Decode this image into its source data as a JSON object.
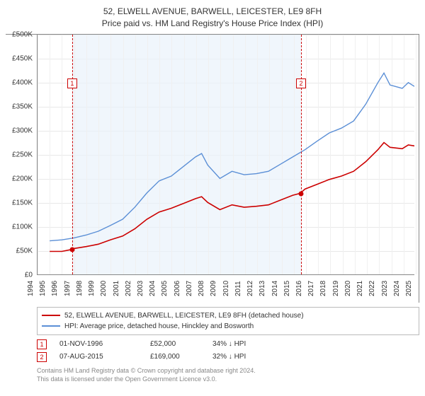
{
  "title_line1": "52, ELWELL AVENUE, BARWELL, LEICESTER, LE9 8FH",
  "title_line2": "Price paid vs. HM Land Registry's House Price Index (HPI)",
  "chart": {
    "type": "line",
    "background_color": "#ffffff",
    "shade_color": "#eaf2fb",
    "grid_color": "#e8e8e8",
    "axis_color": "#888888",
    "ylim": [
      0,
      500000
    ],
    "ytick_step": 50000,
    "yticks": [
      "£0",
      "£50K",
      "£100K",
      "£150K",
      "£200K",
      "£250K",
      "£300K",
      "£350K",
      "£400K",
      "£450K",
      "£500K"
    ],
    "xlim": [
      1994,
      2025
    ],
    "xticks": [
      "1994",
      "1995",
      "1996",
      "1997",
      "1998",
      "1999",
      "2000",
      "2001",
      "2002",
      "2003",
      "2004",
      "2005",
      "2006",
      "2007",
      "2008",
      "2009",
      "2010",
      "2011",
      "2012",
      "2013",
      "2014",
      "2015",
      "2016",
      "2017",
      "2018",
      "2019",
      "2020",
      "2021",
      "2022",
      "2023",
      "2024",
      "2025"
    ],
    "shade_start_year": 1996.84,
    "shade_end_year": 2015.6,
    "series": [
      {
        "name": "property",
        "label": "52, ELWELL AVENUE, BARWELL, LEICESTER, LE9 8FH (detached house)",
        "color": "#cc0000",
        "line_width": 1.6,
        "data": [
          [
            1995,
            48000
          ],
          [
            1996,
            48000
          ],
          [
            1996.84,
            52000
          ],
          [
            1997,
            54000
          ],
          [
            1998,
            58000
          ],
          [
            1999,
            63000
          ],
          [
            2000,
            72000
          ],
          [
            2001,
            80000
          ],
          [
            2002,
            95000
          ],
          [
            2003,
            115000
          ],
          [
            2004,
            130000
          ],
          [
            2005,
            138000
          ],
          [
            2006,
            148000
          ],
          [
            2007,
            158000
          ],
          [
            2007.5,
            162000
          ],
          [
            2008,
            150000
          ],
          [
            2009,
            135000
          ],
          [
            2010,
            145000
          ],
          [
            2011,
            140000
          ],
          [
            2012,
            142000
          ],
          [
            2013,
            145000
          ],
          [
            2014,
            155000
          ],
          [
            2015,
            165000
          ],
          [
            2015.6,
            169000
          ],
          [
            2016,
            178000
          ],
          [
            2017,
            188000
          ],
          [
            2018,
            198000
          ],
          [
            2019,
            205000
          ],
          [
            2020,
            215000
          ],
          [
            2021,
            235000
          ],
          [
            2022,
            260000
          ],
          [
            2022.5,
            275000
          ],
          [
            2023,
            265000
          ],
          [
            2024,
            262000
          ],
          [
            2024.5,
            270000
          ],
          [
            2025,
            268000
          ]
        ]
      },
      {
        "name": "hpi",
        "label": "HPI: Average price, detached house, Hinckley and Bosworth",
        "color": "#5b8fd6",
        "line_width": 1.4,
        "data": [
          [
            1995,
            70000
          ],
          [
            1996,
            72000
          ],
          [
            1997,
            76000
          ],
          [
            1998,
            82000
          ],
          [
            1999,
            90000
          ],
          [
            2000,
            102000
          ],
          [
            2001,
            115000
          ],
          [
            2002,
            140000
          ],
          [
            2003,
            170000
          ],
          [
            2004,
            195000
          ],
          [
            2005,
            205000
          ],
          [
            2006,
            225000
          ],
          [
            2007,
            245000
          ],
          [
            2007.5,
            252000
          ],
          [
            2008,
            228000
          ],
          [
            2009,
            200000
          ],
          [
            2010,
            215000
          ],
          [
            2011,
            208000
          ],
          [
            2012,
            210000
          ],
          [
            2013,
            215000
          ],
          [
            2014,
            230000
          ],
          [
            2015,
            245000
          ],
          [
            2016,
            260000
          ],
          [
            2017,
            278000
          ],
          [
            2018,
            295000
          ],
          [
            2019,
            305000
          ],
          [
            2020,
            320000
          ],
          [
            2021,
            355000
          ],
          [
            2022,
            400000
          ],
          [
            2022.5,
            420000
          ],
          [
            2023,
            395000
          ],
          [
            2024,
            388000
          ],
          [
            2024.5,
            400000
          ],
          [
            2025,
            392000
          ]
        ]
      }
    ],
    "markers": [
      {
        "id": "1",
        "year": 1996.84,
        "price": 52000,
        "box_y": 62
      },
      {
        "id": "2",
        "year": 2015.6,
        "price": 169000,
        "box_y": 62
      }
    ]
  },
  "legend": {
    "rows": [
      {
        "color": "#cc0000",
        "label": "52, ELWELL AVENUE, BARWELL, LEICESTER, LE9 8FH (detached house)"
      },
      {
        "color": "#5b8fd6",
        "label": "HPI: Average price, detached house, Hinckley and Bosworth"
      }
    ]
  },
  "events": [
    {
      "id": "1",
      "date": "01-NOV-1996",
      "price": "£52,000",
      "pct": "34% ↓ HPI"
    },
    {
      "id": "2",
      "date": "07-AUG-2015",
      "price": "£169,000",
      "pct": "32% ↓ HPI"
    }
  ],
  "footer_line1": "Contains HM Land Registry data © Crown copyright and database right 2024.",
  "footer_line2": "This data is licensed under the Open Government Licence v3.0."
}
